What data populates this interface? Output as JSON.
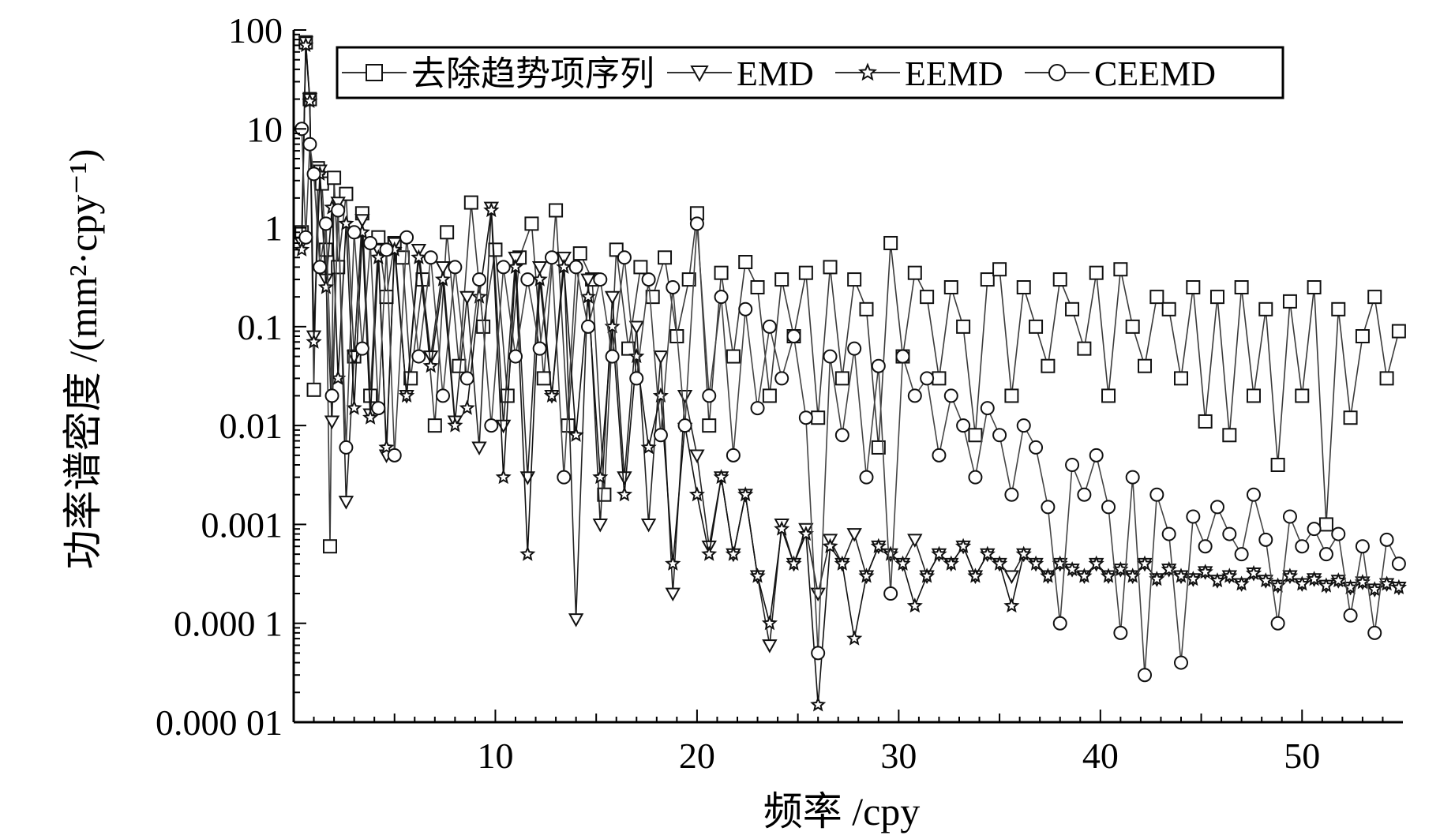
{
  "chart_data": {
    "type": "line",
    "title": "",
    "xlabel": "频率 /cpy",
    "ylabel": "功率谱密度 /(mm²·cpy⁻¹)",
    "yscale": "log",
    "xlim": [
      0,
      55
    ],
    "ylim": [
      1e-05,
      100
    ],
    "x_ticks": [
      10,
      20,
      30,
      40,
      50
    ],
    "x_tick_labels": [
      "10",
      "20",
      "30",
      "40",
      "50"
    ],
    "y_ticks": [
      1e-05,
      0.0001,
      0.001,
      0.01,
      0.1,
      1,
      10,
      100
    ],
    "y_tick_labels": [
      "0.000 01",
      "0.000 1",
      "0.001",
      "0.01",
      "0.1",
      "1",
      "10",
      "100"
    ],
    "legend_position": "top",
    "grid": false,
    "series": [
      {
        "name": "去除趋势项序列",
        "marker": "square",
        "x": [
          0.4,
          0.6,
          0.8,
          1.0,
          1.2,
          1.4,
          1.6,
          1.8,
          2.0,
          2.2,
          2.6,
          3.0,
          3.4,
          3.8,
          4.2,
          4.6,
          5.0,
          5.4,
          5.8,
          6.4,
          7.0,
          7.6,
          8.2,
          8.8,
          9.4,
          10.0,
          10.6,
          11.2,
          11.8,
          12.4,
          13.0,
          13.6,
          14.2,
          14.8,
          15.4,
          16.0,
          16.6,
          17.2,
          17.8,
          18.4,
          19.0,
          19.6,
          20.0,
          20.6,
          21.2,
          21.8,
          22.4,
          23.0,
          23.6,
          24.2,
          24.8,
          25.4,
          26.0,
          26.6,
          27.2,
          27.8,
          28.4,
          29.0,
          29.6,
          30.2,
          30.8,
          31.4,
          32.0,
          32.6,
          33.2,
          33.8,
          34.4,
          35.0,
          35.6,
          36.2,
          36.8,
          37.4,
          38.0,
          38.6,
          39.2,
          39.8,
          40.4,
          41.0,
          41.6,
          42.2,
          42.8,
          43.4,
          44.0,
          44.6,
          45.2,
          45.8,
          46.4,
          47.0,
          47.6,
          48.2,
          48.8,
          49.4,
          50.0,
          50.6,
          51.2,
          51.8,
          52.4,
          53.0,
          53.6,
          54.2,
          54.8
        ],
        "values": [
          0.9,
          75,
          20,
          0.023,
          4,
          2.8,
          0.6,
          0.0006,
          3.2,
          0.4,
          2.2,
          0.05,
          1.4,
          0.02,
          0.8,
          0.2,
          0.7,
          0.5,
          0.03,
          0.3,
          0.01,
          0.9,
          0.04,
          1.8,
          0.1,
          0.6,
          0.02,
          0.5,
          1.1,
          0.03,
          1.5,
          0.01,
          0.55,
          0.3,
          0.002,
          0.6,
          0.06,
          0.4,
          0.2,
          0.5,
          0.08,
          0.3,
          1.4,
          0.01,
          0.35,
          0.05,
          0.45,
          0.25,
          0.02,
          0.3,
          0.08,
          0.35,
          0.012,
          0.4,
          0.03,
          0.3,
          0.15,
          0.006,
          0.7,
          0.05,
          0.35,
          0.2,
          0.03,
          0.25,
          0.1,
          0.008,
          0.3,
          0.38,
          0.02,
          0.25,
          0.1,
          0.04,
          0.3,
          0.15,
          0.06,
          0.35,
          0.02,
          0.38,
          0.1,
          0.04,
          0.2,
          0.15,
          0.03,
          0.25,
          0.011,
          0.2,
          0.008,
          0.25,
          0.02,
          0.15,
          0.004,
          0.18,
          0.02,
          0.25,
          0.001,
          0.15,
          0.012,
          0.08,
          0.2,
          0.03,
          0.09
        ]
      },
      {
        "name": "EMD",
        "marker": "triangle-down",
        "x": [
          0.4,
          0.6,
          0.8,
          1.0,
          1.3,
          1.6,
          1.9,
          2.2,
          2.6,
          3.0,
          3.4,
          3.8,
          4.2,
          4.6,
          5.0,
          5.6,
          6.2,
          6.8,
          7.4,
          8.0,
          8.6,
          9.2,
          9.8,
          10.4,
          11.0,
          11.6,
          12.2,
          12.8,
          13.4,
          14.0,
          14.6,
          15.2,
          15.8,
          16.4,
          17.0,
          17.6,
          18.2,
          18.8,
          19.4,
          20.0,
          20.6,
          21.2,
          21.8,
          22.4,
          23.0,
          23.6,
          24.2,
          24.8,
          25.4,
          26.0,
          26.6,
          27.2,
          27.8,
          28.4,
          29.0,
          29.6,
          30.2,
          30.8,
          31.4,
          32.0,
          32.6,
          33.2,
          33.8,
          34.4,
          35.0,
          35.6,
          36.2,
          36.8,
          37.4,
          38.0,
          38.6,
          39.2,
          39.8,
          40.4,
          41.0,
          41.6,
          42.2,
          42.8,
          43.4,
          44.0,
          44.6,
          45.2,
          45.8,
          46.4,
          47.0,
          47.6,
          48.2,
          48.8,
          49.4,
          50.0,
          50.6,
          51.2,
          51.8,
          52.4,
          53.0,
          53.6,
          54.2,
          54.8
        ],
        "values": [
          0.7,
          75,
          20,
          0.08,
          3.8,
          0.3,
          0.011,
          1.8,
          0.0017,
          0.05,
          1.2,
          0.013,
          0.6,
          0.005,
          0.7,
          0.02,
          0.6,
          0.05,
          0.4,
          0.011,
          0.2,
          0.006,
          1.6,
          0.01,
          0.5,
          0.003,
          0.4,
          0.02,
          0.5,
          0.00011,
          0.3,
          0.001,
          0.2,
          0.003,
          0.1,
          0.001,
          0.05,
          0.0002,
          0.02,
          0.005,
          0.0006,
          0.003,
          0.0005,
          0.002,
          0.0003,
          6e-05,
          0.001,
          0.0004,
          0.0009,
          0.0002,
          0.0007,
          0.0004,
          0.0008,
          0.0003,
          0.0006,
          0.0005,
          0.0004,
          0.0007,
          0.0003,
          0.0005,
          0.0004,
          0.0006,
          0.0003,
          0.0005,
          0.0004,
          0.0003,
          0.0005,
          0.0004,
          0.0003,
          0.0004,
          0.00035,
          0.0003,
          0.0004,
          0.0003,
          0.00035,
          0.0003,
          0.0004,
          0.00028,
          0.00035,
          0.0003,
          0.00028,
          0.00033,
          0.00027,
          0.0003,
          0.00025,
          0.00032,
          0.00027,
          0.00024,
          0.0003,
          0.00025,
          0.00028,
          0.00024,
          0.00027,
          0.00023,
          0.00026,
          0.00022,
          0.00025,
          0.00023
        ]
      },
      {
        "name": "EEMD",
        "marker": "star",
        "x": [
          0.4,
          0.6,
          0.8,
          1.0,
          1.3,
          1.6,
          1.9,
          2.2,
          2.6,
          3.0,
          3.4,
          3.8,
          4.2,
          4.6,
          5.0,
          5.6,
          6.2,
          6.8,
          7.4,
          8.0,
          8.6,
          9.2,
          9.8,
          10.4,
          11.0,
          11.6,
          12.2,
          12.8,
          13.4,
          14.0,
          14.6,
          15.2,
          15.8,
          16.4,
          17.0,
          17.6,
          18.2,
          18.8,
          19.4,
          20.0,
          20.6,
          21.2,
          21.8,
          22.4,
          23.0,
          23.6,
          24.2,
          24.8,
          25.4,
          26.0,
          26.6,
          27.2,
          27.8,
          28.4,
          29.0,
          29.6,
          30.2,
          30.8,
          31.4,
          32.0,
          32.6,
          33.2,
          33.8,
          34.4,
          35.0,
          35.6,
          36.2,
          36.8,
          37.4,
          38.0,
          38.6,
          39.2,
          39.8,
          40.4,
          41.0,
          41.6,
          42.2,
          42.8,
          43.4,
          44.0,
          44.6,
          45.2,
          45.8,
          46.4,
          47.0,
          47.6,
          48.2,
          48.8,
          49.4,
          50.0,
          50.6,
          51.2,
          51.8,
          52.4,
          53.0,
          53.6,
          54.2,
          54.8
        ],
        "values": [
          0.6,
          70,
          19,
          0.07,
          3.5,
          0.25,
          1.6,
          0.03,
          1.1,
          0.015,
          0.9,
          0.012,
          0.5,
          0.006,
          0.6,
          0.02,
          0.5,
          0.04,
          0.3,
          0.01,
          0.015,
          0.2,
          1.5,
          0.003,
          0.4,
          0.0005,
          0.3,
          0.02,
          0.4,
          0.008,
          0.2,
          0.003,
          0.1,
          0.002,
          0.05,
          0.006,
          0.02,
          0.0004,
          0.01,
          0.002,
          0.0005,
          0.003,
          0.0005,
          0.002,
          0.0003,
          0.0001,
          0.0009,
          0.0004,
          0.0008,
          1.5e-05,
          0.0006,
          0.0004,
          7e-05,
          0.0003,
          0.0006,
          0.0005,
          0.0004,
          0.00015,
          0.0003,
          0.0005,
          0.0004,
          0.0006,
          0.0003,
          0.0005,
          0.0004,
          0.00015,
          0.0005,
          0.0004,
          0.0003,
          0.0004,
          0.00035,
          0.0003,
          0.0004,
          0.0003,
          0.00035,
          0.0003,
          0.0004,
          0.00028,
          0.00035,
          0.0003,
          0.00028,
          0.00033,
          0.00027,
          0.0003,
          0.00025,
          0.00032,
          0.00027,
          0.00024,
          0.0003,
          0.00025,
          0.00028,
          0.00024,
          0.00027,
          0.00023,
          0.00026,
          0.00022,
          0.00025,
          0.00023
        ]
      },
      {
        "name": "CEEMD",
        "marker": "circle",
        "x": [
          0.4,
          0.6,
          0.8,
          1.0,
          1.3,
          1.6,
          1.9,
          2.2,
          2.6,
          3.0,
          3.4,
          3.8,
          4.2,
          4.6,
          5.0,
          5.6,
          6.2,
          6.8,
          7.4,
          8.0,
          8.6,
          9.2,
          9.8,
          10.4,
          11.0,
          11.6,
          12.2,
          12.8,
          13.4,
          14.0,
          14.6,
          15.2,
          15.8,
          16.4,
          17.0,
          17.6,
          18.2,
          18.8,
          19.4,
          20.0,
          20.6,
          21.2,
          21.8,
          22.4,
          23.0,
          23.6,
          24.2,
          24.8,
          25.4,
          26.0,
          26.6,
          27.2,
          27.8,
          28.4,
          29.0,
          29.6,
          30.2,
          30.8,
          31.4,
          32.0,
          32.6,
          33.2,
          33.8,
          34.4,
          35.0,
          35.6,
          36.2,
          36.8,
          37.4,
          38.0,
          38.6,
          39.2,
          39.8,
          40.4,
          41.0,
          41.6,
          42.2,
          42.8,
          43.4,
          44.0,
          44.6,
          45.2,
          45.8,
          46.4,
          47.0,
          47.6,
          48.2,
          48.8,
          49.4,
          50.0,
          50.6,
          51.2,
          51.8,
          52.4,
          53.0,
          53.6,
          54.2,
          54.8
        ],
        "values": [
          10,
          0.8,
          7,
          3.5,
          0.4,
          1.1,
          0.02,
          1.5,
          0.006,
          0.9,
          0.06,
          0.7,
          0.015,
          0.6,
          0.005,
          0.8,
          0.05,
          0.5,
          0.02,
          0.4,
          0.03,
          0.3,
          0.01,
          0.4,
          0.05,
          0.3,
          0.06,
          0.5,
          0.003,
          0.4,
          0.1,
          0.3,
          0.05,
          0.5,
          0.03,
          0.3,
          0.008,
          0.25,
          0.01,
          1.1,
          0.02,
          0.2,
          0.005,
          0.15,
          0.015,
          0.1,
          0.03,
          0.08,
          0.012,
          5e-05,
          0.05,
          0.008,
          0.06,
          0.003,
          0.04,
          0.0002,
          0.05,
          0.02,
          0.03,
          0.005,
          0.02,
          0.01,
          0.003,
          0.015,
          0.008,
          0.002,
          0.01,
          0.006,
          0.0015,
          0.0001,
          0.004,
          0.002,
          0.005,
          0.0015,
          8e-05,
          0.003,
          3e-05,
          0.002,
          0.0008,
          4e-05,
          0.0012,
          0.0006,
          0.0015,
          0.0008,
          0.0005,
          0.002,
          0.0007,
          0.0001,
          0.0012,
          0.0006,
          0.0009,
          0.0005,
          0.0008,
          0.00012,
          0.0006,
          8e-05,
          0.0007,
          0.0004
        ]
      }
    ]
  }
}
